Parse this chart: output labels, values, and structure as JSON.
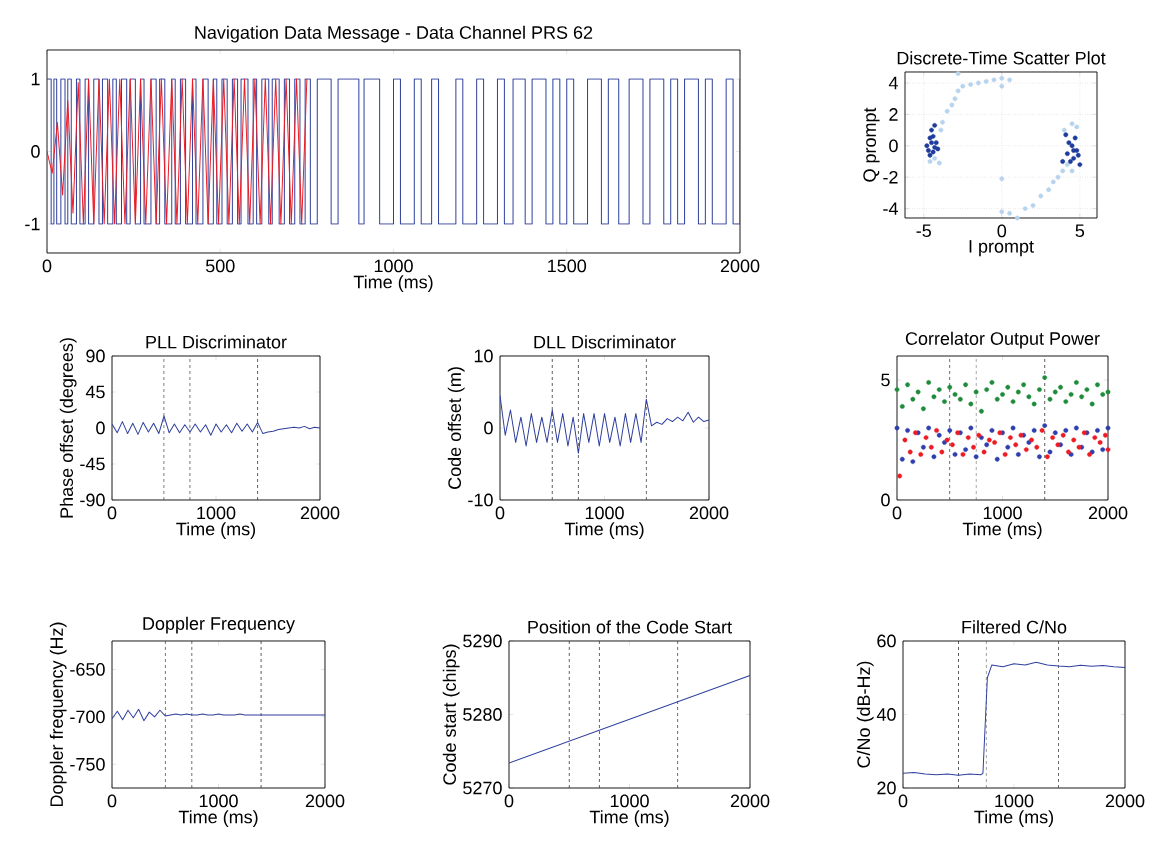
{
  "chart_data": [
    {
      "type": "step",
      "title": "Navigation Data Message - Data Channel PRS 62",
      "xlabel": "Time (ms)",
      "xlim": [
        0,
        2000
      ],
      "ylim": [
        -1.4,
        1.4
      ],
      "xticks": [
        0,
        500,
        1000,
        1500,
        2000
      ],
      "yticks": [
        -1,
        0,
        1
      ],
      "series": [
        {
          "color": "#2e3f9e",
          "x": [
            0,
            12,
            20,
            28,
            40,
            52,
            60,
            70,
            85,
            95,
            110,
            120,
            135,
            150,
            160,
            175,
            190,
            200,
            215,
            230,
            240,
            255,
            270,
            280,
            300,
            315,
            325,
            340,
            360,
            370,
            385,
            400,
            420,
            430,
            450,
            465,
            480,
            490,
            505,
            520,
            535,
            550,
            560,
            580,
            595,
            605,
            620,
            640,
            650,
            670,
            685,
            700,
            715,
            730,
            745,
            760,
            780,
            820,
            840,
            900,
            915,
            960,
            1000,
            1020,
            1060,
            1080,
            1110,
            1130,
            1180,
            1200,
            1240,
            1260,
            1300,
            1320,
            1345,
            1380,
            1400,
            1440,
            1460,
            1480,
            1500,
            1520,
            1560,
            1600,
            1620,
            1650,
            1680,
            1720,
            1740,
            1780,
            1800,
            1820,
            1840,
            1880,
            1900,
            1920,
            1960,
            1980,
            2000
          ],
          "values": [
            1,
            -1,
            1,
            -1,
            1,
            -1,
            1,
            -1,
            1,
            -1,
            1,
            -1,
            1,
            -1,
            1,
            -1,
            1,
            -1,
            1,
            -1,
            1,
            -1,
            1,
            -1,
            1,
            -1,
            1,
            -1,
            1,
            -1,
            1,
            -1,
            1,
            -1,
            1,
            -1,
            1,
            -1,
            1,
            -1,
            1,
            -1,
            1,
            -1,
            1,
            -1,
            1,
            -1,
            1,
            -1,
            1,
            -1,
            1,
            -1,
            1,
            -1,
            1,
            -1,
            1,
            -1,
            1,
            -1,
            1,
            -1,
            1,
            -1,
            1,
            -1,
            1,
            -1,
            1,
            -1,
            1,
            -1,
            1,
            -1,
            1,
            -1,
            1,
            -1,
            1,
            -1,
            1,
            -1,
            1,
            -1,
            1,
            -1,
            1,
            -1,
            1,
            -1,
            1,
            -1,
            1,
            -1,
            1,
            -1,
            1
          ]
        },
        {
          "type": "line",
          "color": "#ed1c24",
          "x": [
            0,
            15,
            30,
            45,
            60,
            75,
            90,
            105,
            120,
            135,
            150,
            165,
            180,
            195,
            210,
            225,
            240,
            255,
            270,
            285,
            300,
            315,
            330,
            345,
            360,
            375,
            390,
            405,
            420,
            435,
            450,
            465,
            480,
            495,
            510,
            525,
            540,
            555,
            570,
            585,
            600,
            615,
            630,
            645,
            660,
            675,
            690,
            705,
            720,
            735,
            750
          ],
          "values": [
            0,
            -0.3,
            0.4,
            -0.6,
            0.7,
            -0.85,
            0.95,
            -1,
            1,
            -1,
            1,
            -1,
            1,
            -1,
            1,
            -1,
            1,
            -1,
            1,
            -1,
            1,
            -1,
            1,
            -1,
            1,
            -1,
            1,
            -1,
            1,
            -1,
            1,
            -1,
            1,
            -1,
            1,
            -1,
            1,
            -1,
            1,
            -1,
            1,
            -1,
            1,
            -1,
            1,
            -1,
            1,
            -1,
            1,
            -1,
            1
          ]
        }
      ]
    },
    {
      "type": "scatter",
      "title": "Discrete-Time Scatter Plot",
      "xlabel": "I prompt",
      "ylabel": "Q prompt",
      "xlim": [
        -6.2,
        6.1
      ],
      "ylim": [
        -4.6,
        4.7
      ],
      "xticks": [
        -5,
        0,
        5
      ],
      "yticks": [
        -4,
        -2,
        0,
        2,
        4
      ],
      "grid": true,
      "marker": "circle",
      "series": [
        {
          "color": "#b8d3ee",
          "x": [
            -4.6,
            -4.3,
            -4,
            -3.9,
            -3.8,
            -3.5,
            -3.2,
            -3,
            -2.8,
            -2.5,
            -2,
            -1.5,
            -1,
            -0.5,
            0,
            0.5,
            -2.8,
            0,
            0,
            0.5,
            1,
            1.5,
            2,
            2.5,
            3,
            3.3,
            3.6,
            3.9,
            4.2,
            4.5,
            4.8,
            4,
            4.5,
            0
          ],
          "values": [
            -1,
            -0.8,
            -1.1,
            1.0,
            1.5,
            2.2,
            2.6,
            3,
            3.5,
            3.8,
            3.9,
            4,
            4.1,
            4.2,
            4.3,
            4.2,
            4.6,
            3.8,
            -4.2,
            -4.3,
            -4.6,
            -4,
            -3.8,
            -3.2,
            -2.8,
            -2.3,
            -2,
            -1.6,
            -1.2,
            -1.6,
            1.2,
            1,
            1.4,
            -2.1
          ]
        },
        {
          "color": "#1f3c9c",
          "x": [
            -4.8,
            -4.6,
            -4.4,
            -4.2,
            -4.5,
            -4.3,
            -4.7,
            -4.4,
            -4.1,
            -4.6,
            -4.5,
            -4.3,
            4.2,
            4.5,
            4.8,
            4.6,
            4.1,
            4.4,
            3.9,
            5,
            4.7,
            4.3,
            4.9,
            4.6
          ],
          "values": [
            0,
            0.5,
            -0.4,
            0.2,
            1,
            1.3,
            -0.3,
            0.6,
            -0.2,
            -0.6,
            0.2,
            -0.1,
            -0.5,
            0,
            -0.3,
            -0.8,
            0.7,
            -1,
            -1,
            -1.2,
            0.5,
            0.2,
            -0.6,
            -0.3
          ]
        }
      ]
    },
    {
      "type": "line",
      "title": "PLL Discriminator",
      "xlabel": "Time (ms)",
      "ylabel": "Phase offset (degrees)",
      "xlim": [
        0,
        2000
      ],
      "ylim": [
        -90,
        90
      ],
      "xticks": [
        0,
        1000,
        2000
      ],
      "yticks": [
        -90,
        -45,
        0,
        45,
        90
      ],
      "ref_lines": [
        {
          "axis": "x",
          "value": 500,
          "color": "#333333",
          "line_style": "dashed"
        },
        {
          "axis": "x",
          "value": 750,
          "color": "#333333",
          "line_style": "dashed"
        },
        {
          "axis": "x",
          "value": 1400,
          "color": "#333333",
          "line_style": "dashed"
        }
      ],
      "series": [
        {
          "color": "#2e3f9e",
          "x": [
            0,
            50,
            100,
            150,
            200,
            250,
            300,
            350,
            400,
            450,
            500,
            550,
            600,
            650,
            700,
            750,
            800,
            850,
            900,
            950,
            1000,
            1050,
            1100,
            1150,
            1200,
            1250,
            1300,
            1350,
            1400,
            1450,
            1500,
            1550,
            1600,
            1650,
            1700,
            1750,
            1800,
            1850,
            1900,
            1950,
            2000
          ],
          "values": [
            5,
            -6,
            8,
            -7,
            6,
            -8,
            7,
            -5,
            6,
            -7,
            15,
            -6,
            5,
            -6,
            4,
            -5,
            5,
            -5,
            4,
            -9,
            5,
            -5,
            4,
            -6,
            6,
            -4,
            5,
            -5,
            7,
            -7,
            -5,
            -4,
            -2,
            -1,
            0,
            1,
            0,
            2,
            -1,
            1,
            0
          ]
        }
      ]
    },
    {
      "type": "line",
      "title": "DLL Discriminator",
      "xlabel": "Time (ms)",
      "ylabel": "Code offset (m)",
      "xlim": [
        0,
        2000
      ],
      "ylim": [
        -10,
        10
      ],
      "xticks": [
        0,
        1000,
        2000
      ],
      "yticks": [
        -10,
        0,
        10
      ],
      "ref_lines": [
        {
          "axis": "x",
          "value": 500,
          "color": "#333333",
          "line_style": "dashed"
        },
        {
          "axis": "x",
          "value": 750,
          "color": "#333333",
          "line_style": "dashed"
        },
        {
          "axis": "x",
          "value": 1400,
          "color": "#333333",
          "line_style": "dashed"
        }
      ],
      "series": [
        {
          "color": "#2e3f9e",
          "x": [
            0,
            50,
            100,
            150,
            200,
            250,
            300,
            350,
            400,
            450,
            500,
            550,
            600,
            650,
            700,
            750,
            800,
            850,
            900,
            950,
            1000,
            1050,
            1100,
            1150,
            1200,
            1250,
            1300,
            1350,
            1400,
            1450,
            1500,
            1550,
            1600,
            1650,
            1700,
            1750,
            1800,
            1850,
            1900,
            1950,
            2000
          ],
          "values": [
            4.5,
            -1,
            2.5,
            -2,
            1.5,
            -2.5,
            2,
            -2,
            1.5,
            -2,
            2.5,
            -2,
            2,
            -2.5,
            1.5,
            -3.5,
            2,
            -2,
            2,
            -2.5,
            2,
            -2,
            1.5,
            -2.5,
            2,
            -2,
            2,
            -2,
            4,
            0.3,
            0.8,
            0.5,
            1.3,
            0.9,
            1.5,
            1,
            2.2,
            0.8,
            1.5,
            0.9,
            1.1
          ]
        }
      ]
    },
    {
      "type": "scatter",
      "title": "Correlator Output Power",
      "xlabel": "Time (ms)",
      "xlim": [
        0,
        2000
      ],
      "ylim": [
        0,
        6
      ],
      "xticks": [
        0,
        1000,
        2000
      ],
      "yticks": [
        0,
        5
      ],
      "marker": "circle",
      "ref_lines": [
        {
          "axis": "x",
          "value": 500,
          "color": "#333333",
          "line_style": "dashed"
        },
        {
          "axis": "x",
          "value": 750,
          "color": "#333333",
          "line_style": "dashed"
        },
        {
          "axis": "x",
          "value": 1400,
          "color": "#333333",
          "line_style": "dashed"
        }
      ],
      "series": [
        {
          "color": "#1e8c3a",
          "x": [
            0,
            50,
            100,
            150,
            200,
            250,
            300,
            350,
            400,
            450,
            500,
            550,
            600,
            650,
            700,
            750,
            800,
            850,
            900,
            950,
            1000,
            1050,
            1100,
            1150,
            1200,
            1250,
            1300,
            1350,
            1400,
            1450,
            1500,
            1550,
            1600,
            1650,
            1700,
            1750,
            1800,
            1850,
            1900,
            1950,
            2000
          ],
          "values": [
            4.6,
            3.9,
            4.8,
            4.2,
            4.5,
            3.8,
            4.9,
            4.3,
            4.6,
            4.1,
            4.7,
            4.4,
            4.2,
            4.8,
            4.0,
            4.5,
            3.7,
            4.6,
            4.9,
            4.2,
            4.4,
            4.7,
            4.1,
            4.5,
            4.8,
            4.3,
            4.0,
            4.6,
            5.1,
            4.2,
            4.5,
            4.7,
            4.1,
            4.4,
            4.9,
            4.3,
            4.6,
            4.0,
            4.8,
            4.4,
            4.5
          ]
        },
        {
          "color": "#2e3fae",
          "x": [
            0,
            50,
            100,
            150,
            200,
            250,
            300,
            350,
            400,
            450,
            500,
            550,
            600,
            650,
            700,
            750,
            800,
            850,
            900,
            950,
            1000,
            1050,
            1100,
            1150,
            1200,
            1250,
            1300,
            1350,
            1400,
            1450,
            1500,
            1550,
            1600,
            1650,
            1700,
            1750,
            1800,
            1850,
            1900,
            1950,
            2000
          ],
          "values": [
            3.0,
            1.7,
            2.9,
            1.6,
            2.8,
            2.2,
            3.0,
            1.8,
            2.7,
            2.4,
            2.9,
            1.9,
            2.8,
            2.1,
            3.0,
            1.8,
            2.6,
            2.3,
            2.9,
            1.7,
            2.8,
            2.2,
            3.0,
            1.9,
            2.7,
            2.4,
            2.9,
            1.8,
            3.1,
            2.0,
            2.8,
            2.3,
            2.9,
            1.9,
            3.0,
            2.2,
            2.8,
            2.0,
            2.9,
            2.1,
            3.0
          ]
        },
        {
          "color": "#ed1c24",
          "x": [
            25,
            75,
            125,
            175,
            225,
            275,
            325,
            375,
            425,
            475,
            525,
            575,
            625,
            675,
            725,
            775,
            825,
            875,
            925,
            975,
            1025,
            1075,
            1125,
            1175,
            1225,
            1275,
            1325,
            1375,
            1425,
            1475,
            1525,
            1575,
            1625,
            1675,
            1725,
            1775,
            1825,
            1875,
            1925,
            1975,
            2000
          ],
          "values": [
            1.0,
            2.5,
            2.0,
            2.8,
            1.9,
            2.6,
            2.2,
            2.9,
            2.0,
            2.5,
            2.3,
            2.8,
            1.9,
            2.6,
            2.2,
            2.7,
            2.0,
            2.5,
            2.4,
            2.8,
            1.9,
            2.6,
            2.3,
            2.7,
            2.1,
            2.5,
            2.2,
            2.9,
            1.8,
            2.6,
            2.3,
            2.7,
            2.0,
            2.5,
            2.2,
            2.8,
            1.9,
            2.6,
            2.4,
            2.7,
            2.1
          ]
        }
      ]
    },
    {
      "type": "line",
      "title": "Doppler Frequency",
      "xlabel": "Time (ms)",
      "ylabel": "Doppler frequency (Hz)",
      "xlim": [
        0,
        2000
      ],
      "ylim": [
        -775,
        -620
      ],
      "xticks": [
        0,
        1000,
        2000
      ],
      "yticks": [
        -750,
        -700,
        -650
      ],
      "ref_lines": [
        {
          "axis": "x",
          "value": 500,
          "color": "#333333",
          "line_style": "dashed"
        },
        {
          "axis": "x",
          "value": 750,
          "color": "#333333",
          "line_style": "dashed"
        },
        {
          "axis": "x",
          "value": 1400,
          "color": "#333333",
          "line_style": "dashed"
        }
      ],
      "series": [
        {
          "color": "#2e3f9e",
          "x": [
            0,
            50,
            100,
            150,
            200,
            250,
            300,
            350,
            400,
            450,
            500,
            550,
            600,
            650,
            700,
            750,
            800,
            850,
            900,
            950,
            1000,
            1050,
            1100,
            1150,
            1200,
            1250,
            1300,
            1350,
            1400,
            1450,
            1500,
            1550,
            1600,
            1650,
            1700,
            1750,
            1800,
            1850,
            1900,
            1950,
            2000
          ],
          "values": [
            -702,
            -694,
            -703,
            -693,
            -701,
            -692,
            -704,
            -695,
            -700,
            -693,
            -699,
            -698,
            -697,
            -698,
            -697,
            -698,
            -698,
            -697,
            -698,
            -698,
            -697,
            -698,
            -698,
            -698,
            -697,
            -698,
            -698,
            -698,
            -698,
            -698,
            -698,
            -698,
            -698,
            -698,
            -698,
            -698,
            -698,
            -698,
            -698,
            -698,
            -698
          ]
        }
      ]
    },
    {
      "type": "line",
      "title": "Position of the Code Start",
      "xlabel": "Time (ms)",
      "ylabel": "Code start (chips)",
      "xlim": [
        0,
        2000
      ],
      "ylim": [
        5270,
        5290
      ],
      "xticks": [
        0,
        1000,
        2000
      ],
      "yticks": [
        5270,
        5280,
        5290
      ],
      "ref_lines": [
        {
          "axis": "x",
          "value": 500,
          "color": "#333333",
          "line_style": "dashed"
        },
        {
          "axis": "x",
          "value": 750,
          "color": "#333333",
          "line_style": "dashed"
        },
        {
          "axis": "x",
          "value": 1400,
          "color": "#333333",
          "line_style": "dashed"
        }
      ],
      "series": [
        {
          "color": "#2e3f9e",
          "x": [
            0,
            2000
          ],
          "values": [
            5273.4,
            5285.3
          ]
        }
      ]
    },
    {
      "type": "line",
      "title": "Filtered C/No",
      "xlabel": "Time (ms)",
      "ylabel": "C/No (dB-Hz)",
      "xlim": [
        0,
        2000
      ],
      "ylim": [
        20,
        60
      ],
      "xticks": [
        0,
        1000,
        2000
      ],
      "yticks": [
        20,
        40,
        60
      ],
      "ref_lines": [
        {
          "axis": "x",
          "value": 500,
          "color": "#333333",
          "line_style": "dashed"
        },
        {
          "axis": "x",
          "value": 750,
          "color": "#333333",
          "line_style": "dashed"
        },
        {
          "axis": "x",
          "value": 1400,
          "color": "#333333",
          "line_style": "dashed"
        }
      ],
      "series": [
        {
          "color": "#2e3f9e",
          "x": [
            0,
            100,
            200,
            300,
            400,
            500,
            600,
            700,
            720,
            760,
            800,
            900,
            1000,
            1100,
            1200,
            1300,
            1400,
            1500,
            1600,
            1700,
            1800,
            1900,
            2000
          ],
          "values": [
            24,
            24.2,
            23.8,
            23.6,
            23.8,
            23.5,
            23.8,
            23.6,
            24,
            50,
            53.5,
            53,
            53.8,
            53.5,
            54.2,
            53.5,
            53.2,
            53,
            53.4,
            53.1,
            53.3,
            53,
            52.8
          ]
        }
      ]
    }
  ]
}
